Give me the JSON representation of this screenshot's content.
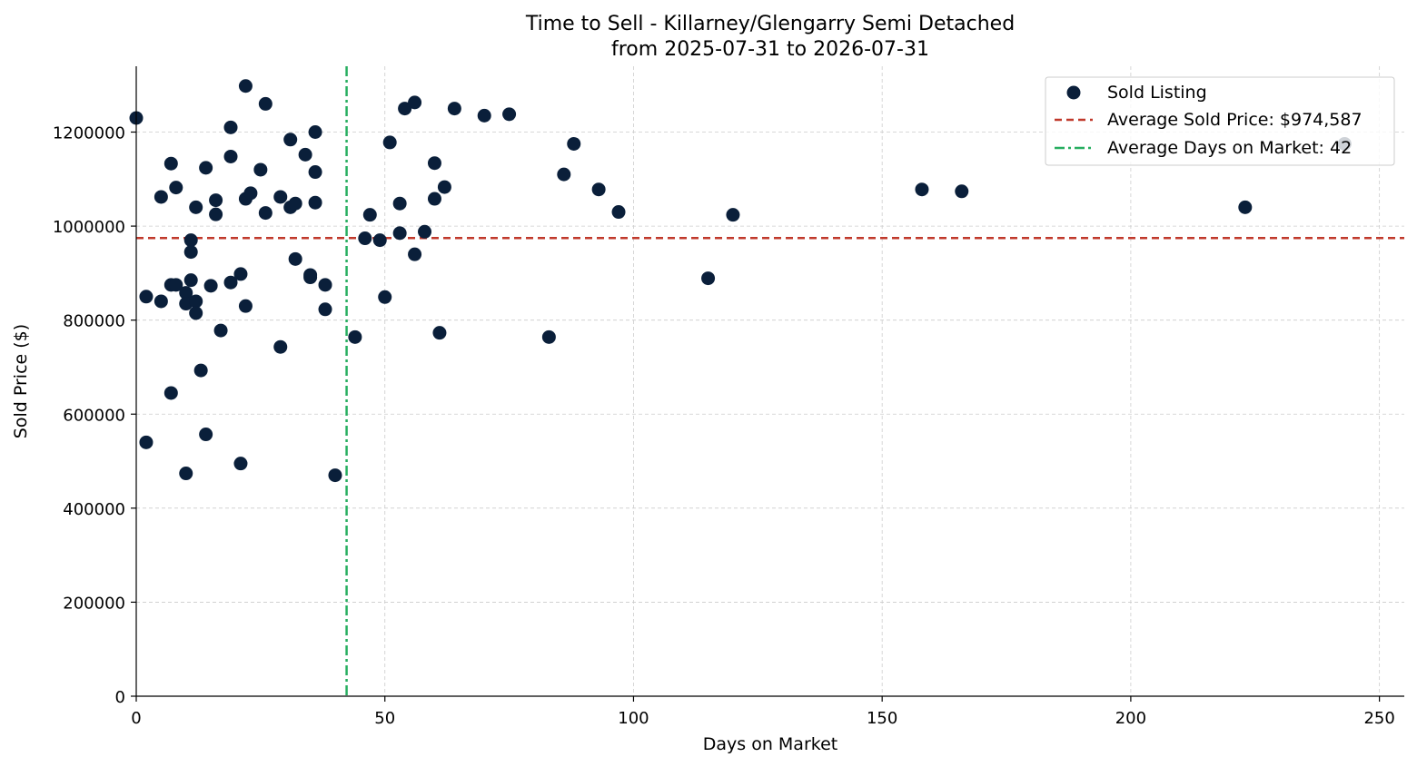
{
  "chart_data": {
    "type": "scatter",
    "title_line1": "Time to Sell - Killarney/Glengarry Semi Detached",
    "title_line2": "from 2025-07-31 to 2026-07-31",
    "xlabel": "Days on Market",
    "ylabel": "Sold Price ($)",
    "xlim": [
      0,
      255
    ],
    "ylim": [
      0,
      1340000
    ],
    "x_ticks": [
      0,
      50,
      100,
      150,
      200,
      250
    ],
    "y_ticks": [
      0,
      200000,
      400000,
      600000,
      800000,
      1000000,
      1200000
    ],
    "x_tick_labels": [
      "0",
      "50",
      "100",
      "150",
      "200",
      "250"
    ],
    "y_tick_labels": [
      "0",
      "200000",
      "400000",
      "600000",
      "800000",
      "1000000",
      "1200000"
    ],
    "grid": true,
    "legend_position": "top-right",
    "average_price": 974587,
    "average_days": 42.3,
    "series": [
      {
        "name": "Sold Listing",
        "color": "#0a1f3a",
        "points": [
          [
            0,
            1230000
          ],
          [
            2,
            850000
          ],
          [
            2,
            540000
          ],
          [
            5,
            840000
          ],
          [
            5,
            1062000
          ],
          [
            7,
            645000
          ],
          [
            7,
            1133000
          ],
          [
            7,
            875000
          ],
          [
            8,
            1082000
          ],
          [
            8,
            875000
          ],
          [
            10,
            858000
          ],
          [
            10,
            835000
          ],
          [
            10,
            474000
          ],
          [
            11,
            885000
          ],
          [
            11,
            970000
          ],
          [
            11,
            945000
          ],
          [
            12,
            1040000
          ],
          [
            12,
            840000
          ],
          [
            12,
            815000
          ],
          [
            13,
            693000
          ],
          [
            14,
            1124000
          ],
          [
            14,
            557000
          ],
          [
            15,
            873000
          ],
          [
            16,
            1055000
          ],
          [
            16,
            1025000
          ],
          [
            17,
            778000
          ],
          [
            19,
            1210000
          ],
          [
            19,
            1148000
          ],
          [
            19,
            880000
          ],
          [
            21,
            898000
          ],
          [
            21,
            495000
          ],
          [
            22,
            1298000
          ],
          [
            22,
            1058000
          ],
          [
            22,
            830000
          ],
          [
            23,
            1070000
          ],
          [
            25,
            1120000
          ],
          [
            26,
            1260000
          ],
          [
            26,
            1028000
          ],
          [
            29,
            1062000
          ],
          [
            29,
            743000
          ],
          [
            31,
            1184000
          ],
          [
            31,
            1040000
          ],
          [
            32,
            1048000
          ],
          [
            32,
            930000
          ],
          [
            34,
            1152000
          ],
          [
            35,
            896000
          ],
          [
            35,
            891000
          ],
          [
            36,
            1200000
          ],
          [
            36,
            1115000
          ],
          [
            36,
            1050000
          ],
          [
            38,
            875000
          ],
          [
            38,
            823000
          ],
          [
            40,
            470000
          ],
          [
            44,
            764000
          ],
          [
            46,
            974000
          ],
          [
            47,
            1024000
          ],
          [
            49,
            970000
          ],
          [
            50,
            849000
          ],
          [
            51,
            1178000
          ],
          [
            53,
            1048000
          ],
          [
            53,
            985000
          ],
          [
            54,
            1250000
          ],
          [
            56,
            1263000
          ],
          [
            56,
            940000
          ],
          [
            58,
            988000
          ],
          [
            60,
            1134000
          ],
          [
            60,
            1058000
          ],
          [
            61,
            773000
          ],
          [
            62,
            1083000
          ],
          [
            64,
            1250000
          ],
          [
            70,
            1235000
          ],
          [
            75,
            1238000
          ],
          [
            83,
            764000
          ],
          [
            86,
            1110000
          ],
          [
            88,
            1175000
          ],
          [
            93,
            1078000
          ],
          [
            97,
            1030000
          ],
          [
            115,
            889000
          ],
          [
            120,
            1024000
          ],
          [
            158,
            1078000
          ],
          [
            166,
            1074000
          ],
          [
            223,
            1040000
          ],
          [
            243,
            1175000
          ]
        ]
      }
    ],
    "legend": {
      "sold_label": "Sold Listing",
      "avg_price_label": "Average Sold Price: $974,587",
      "avg_days_label": "Average Days on Market: 42"
    },
    "colors": {
      "points": "#0a1f3a",
      "avg_price_line": "#c0392b",
      "avg_days_line": "#27ae60"
    }
  }
}
